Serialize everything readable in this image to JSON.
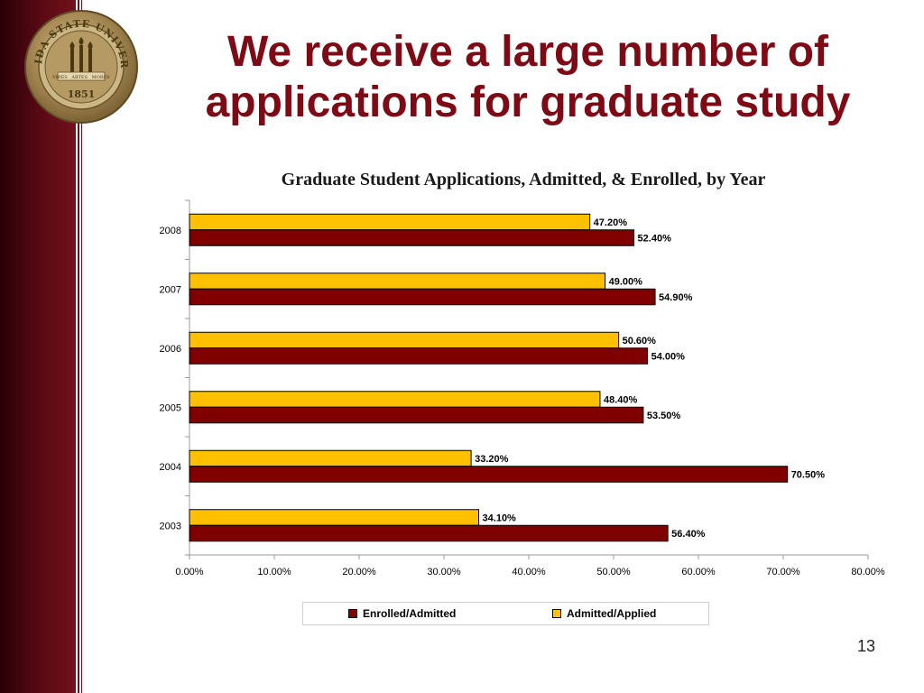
{
  "slide": {
    "title_line1": "We receive a large number of",
    "title_line2": "applications for graduate study",
    "page_number": "13"
  },
  "seal": {
    "text": "FLORIDA STATE UNIVERSITY",
    "ribbon": [
      "VIRES",
      "ARTES",
      "MORES"
    ],
    "year": "1851"
  },
  "colors": {
    "brand_garnet": "#7d0a14",
    "admitted_applied": "#FFC000",
    "enrolled_admitted": "#800000"
  },
  "chart_data": {
    "type": "bar",
    "orientation": "horizontal",
    "title": "Graduate Student Applications, Admitted, & Enrolled, by Year",
    "categories": [
      "2008",
      "2007",
      "2006",
      "2005",
      "2004",
      "2003"
    ],
    "series": [
      {
        "name": "Admitted/Applied",
        "color": "#FFC000",
        "values": [
          47.2,
          49.0,
          50.6,
          48.4,
          33.2,
          34.1
        ],
        "labels": [
          "47.20%",
          "49.00%",
          "50.60%",
          "48.40%",
          "33.20%",
          "34.10%"
        ]
      },
      {
        "name": "Enrolled/Admitted",
        "color": "#800000",
        "values": [
          52.4,
          54.9,
          54.0,
          53.5,
          70.5,
          56.4
        ],
        "labels": [
          "52.40%",
          "54.90%",
          "54.00%",
          "53.50%",
          "70.50%",
          "56.40%"
        ]
      }
    ],
    "xlim": [
      0,
      80
    ],
    "xticks": [
      0,
      10,
      20,
      30,
      40,
      50,
      60,
      70,
      80
    ],
    "xtick_labels": [
      "0.00%",
      "10.00%",
      "20.00%",
      "30.00%",
      "40.00%",
      "50.00%",
      "60.00%",
      "70.00%",
      "80.00%"
    ],
    "grid": false,
    "legend_position": "bottom",
    "legend_order": [
      "Enrolled/Admitted",
      "Admitted/Applied"
    ]
  }
}
